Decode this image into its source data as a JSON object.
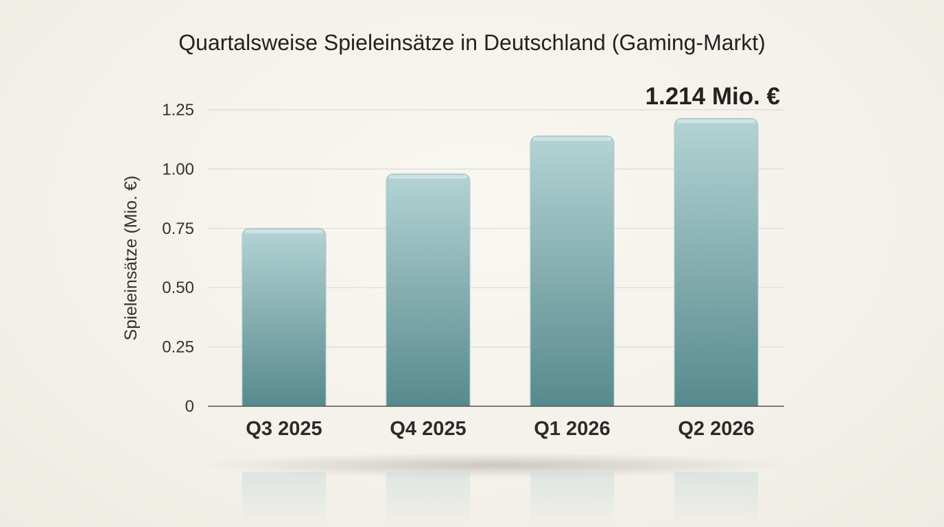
{
  "chart_data": {
    "type": "bar",
    "title": "Quartalsweise Spieleinsätze in Deutschland (Gaming-Markt)",
    "xlabel": "",
    "ylabel": "Spieleinsätze (Mio. €)",
    "categories": [
      "Q3 2025",
      "Q4 2025",
      "Q1 2026",
      "Q2 2026"
    ],
    "values": [
      0.75,
      0.98,
      1.14,
      1.214
    ],
    "ylim": [
      0,
      1.25
    ],
    "yticks": [
      0,
      0.25,
      0.5,
      0.75,
      1.0,
      1.25
    ],
    "ytick_labels": [
      "0",
      "0.25",
      "0.50",
      "0.75",
      "1.00",
      "1.25"
    ],
    "grid": true,
    "annotation": "1.214 Mio. €",
    "bar_color_top": "#b4d3d4",
    "bar_color_bottom": "#578a8d"
  }
}
